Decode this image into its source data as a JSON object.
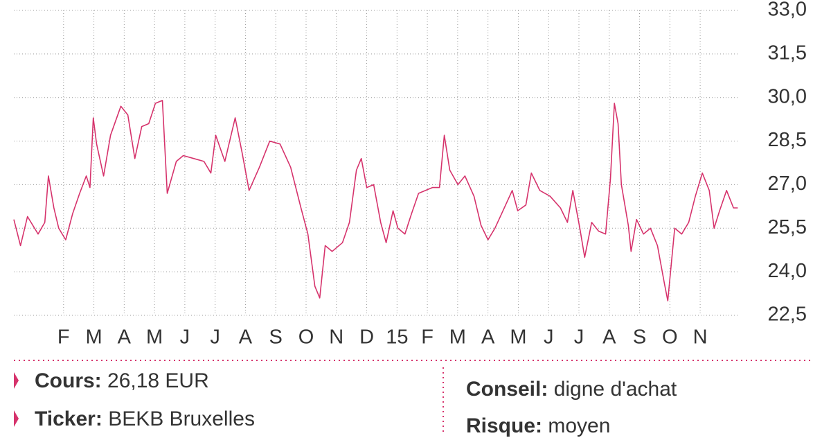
{
  "chart_data": {
    "type": "line",
    "x": [
      -0.64,
      -0.42,
      -0.19,
      0.16,
      0.38,
      0.5,
      0.68,
      0.84,
      1.07,
      1.3,
      1.53,
      1.75,
      1.87,
      1.98,
      2.09,
      2.32,
      2.55,
      2.89,
      3.12,
      3.35,
      3.58,
      3.81,
      4.03,
      4.26,
      4.42,
      4.72,
      4.95,
      5.29,
      5.63,
      5.86,
      6.02,
      6.32,
      6.66,
      6.89,
      7.12,
      7.46,
      7.8,
      8.14,
      8.49,
      8.83,
      9.06,
      9.29,
      9.45,
      9.63,
      9.86,
      10.2,
      10.43,
      10.66,
      10.82,
      11.0,
      11.23,
      11.46,
      11.64,
      11.87,
      12.03,
      12.26,
      12.48,
      12.71,
      12.94,
      13.17,
      13.4,
      13.56,
      13.74,
      14.01,
      14.24,
      14.54,
      14.77,
      15.0,
      15.23,
      15.45,
      15.8,
      15.98,
      16.25,
      16.43,
      16.71,
      17.05,
      17.39,
      17.62,
      17.8,
      18.03,
      18.19,
      18.42,
      18.65,
      18.88,
      19.04,
      19.17,
      19.29,
      19.4,
      19.63,
      19.72,
      19.9,
      20.13,
      20.36,
      20.59,
      20.82,
      20.93,
      21.16,
      21.39,
      21.62,
      21.84,
      22.07,
      22.3,
      22.46,
      22.64,
      22.87,
      23.1,
      23.24
    ],
    "series": [
      {
        "color": "#d6336c",
        "values": [
          25.8,
          24.9,
          25.9,
          25.3,
          25.7,
          27.3,
          26.2,
          25.5,
          25.1,
          26.0,
          26.7,
          27.3,
          26.9,
          29.3,
          28.4,
          27.3,
          28.7,
          29.7,
          29.4,
          27.9,
          29.0,
          29.1,
          29.8,
          29.9,
          26.7,
          27.8,
          28.0,
          27.9,
          27.8,
          27.4,
          28.7,
          27.8,
          29.3,
          28.1,
          26.8,
          27.6,
          28.5,
          28.4,
          27.6,
          26.2,
          25.3,
          23.5,
          23.1,
          24.9,
          24.7,
          25.0,
          25.7,
          27.5,
          27.9,
          26.9,
          27.0,
          25.7,
          25.0,
          26.1,
          25.5,
          25.3,
          26.0,
          26.7,
          26.8,
          26.9,
          26.9,
          28.7,
          27.5,
          27.0,
          27.3,
          26.6,
          25.6,
          25.1,
          25.5,
          26.0,
          26.8,
          26.1,
          26.3,
          27.4,
          26.8,
          26.6,
          26.2,
          25.7,
          26.8,
          25.5,
          24.5,
          25.7,
          25.4,
          25.3,
          27.2,
          29.8,
          29.1,
          27.0,
          25.6,
          24.7,
          25.8,
          25.3,
          25.5,
          24.9,
          23.6,
          23.0,
          25.5,
          25.3,
          25.7,
          26.6,
          27.4,
          26.8,
          25.5,
          26.1,
          26.8,
          26.2,
          26.2
        ]
      }
    ],
    "xlim": [
      -0.64,
      23.3
    ],
    "xticks": [
      {
        "value": 1,
        "label": "F"
      },
      {
        "value": 2,
        "label": "M"
      },
      {
        "value": 3,
        "label": "A"
      },
      {
        "value": 4,
        "label": "M"
      },
      {
        "value": 5,
        "label": "J"
      },
      {
        "value": 6,
        "label": "J"
      },
      {
        "value": 7,
        "label": "A"
      },
      {
        "value": 8,
        "label": "S"
      },
      {
        "value": 9,
        "label": "O"
      },
      {
        "value": 10,
        "label": "N"
      },
      {
        "value": 11,
        "label": "D"
      },
      {
        "value": 12,
        "label": "15"
      },
      {
        "value": 13,
        "label": "F"
      },
      {
        "value": 14,
        "label": "M"
      },
      {
        "value": 15,
        "label": "A"
      },
      {
        "value": 16,
        "label": "M"
      },
      {
        "value": 17,
        "label": "J"
      },
      {
        "value": 18,
        "label": "J"
      },
      {
        "value": 19,
        "label": "A"
      },
      {
        "value": 20,
        "label": "S"
      },
      {
        "value": 21,
        "label": "O"
      },
      {
        "value": 22,
        "label": "N"
      }
    ],
    "ylim": [
      22.5,
      33
    ],
    "yticks": [
      {
        "value": 33,
        "label": "33,0"
      },
      {
        "value": 31.5,
        "label": "31,5"
      },
      {
        "value": 30,
        "label": "30,0"
      },
      {
        "value": 28.5,
        "label": "28,5"
      },
      {
        "value": 27,
        "label": "27,0"
      },
      {
        "value": 25.5,
        "label": "25,5"
      },
      {
        "value": 24,
        "label": "24,0"
      },
      {
        "value": 22.5,
        "label": "22,5"
      }
    ],
    "grid": true
  },
  "info": {
    "left": [
      {
        "label": "Cours:",
        "value": "26,18 EUR"
      },
      {
        "label": "Ticker:",
        "value": "BEKB Bruxelles"
      }
    ],
    "right": [
      {
        "label": "Conseil:",
        "value": "digne d'achat"
      },
      {
        "label": "Risque:",
        "value": "moyen"
      }
    ]
  }
}
